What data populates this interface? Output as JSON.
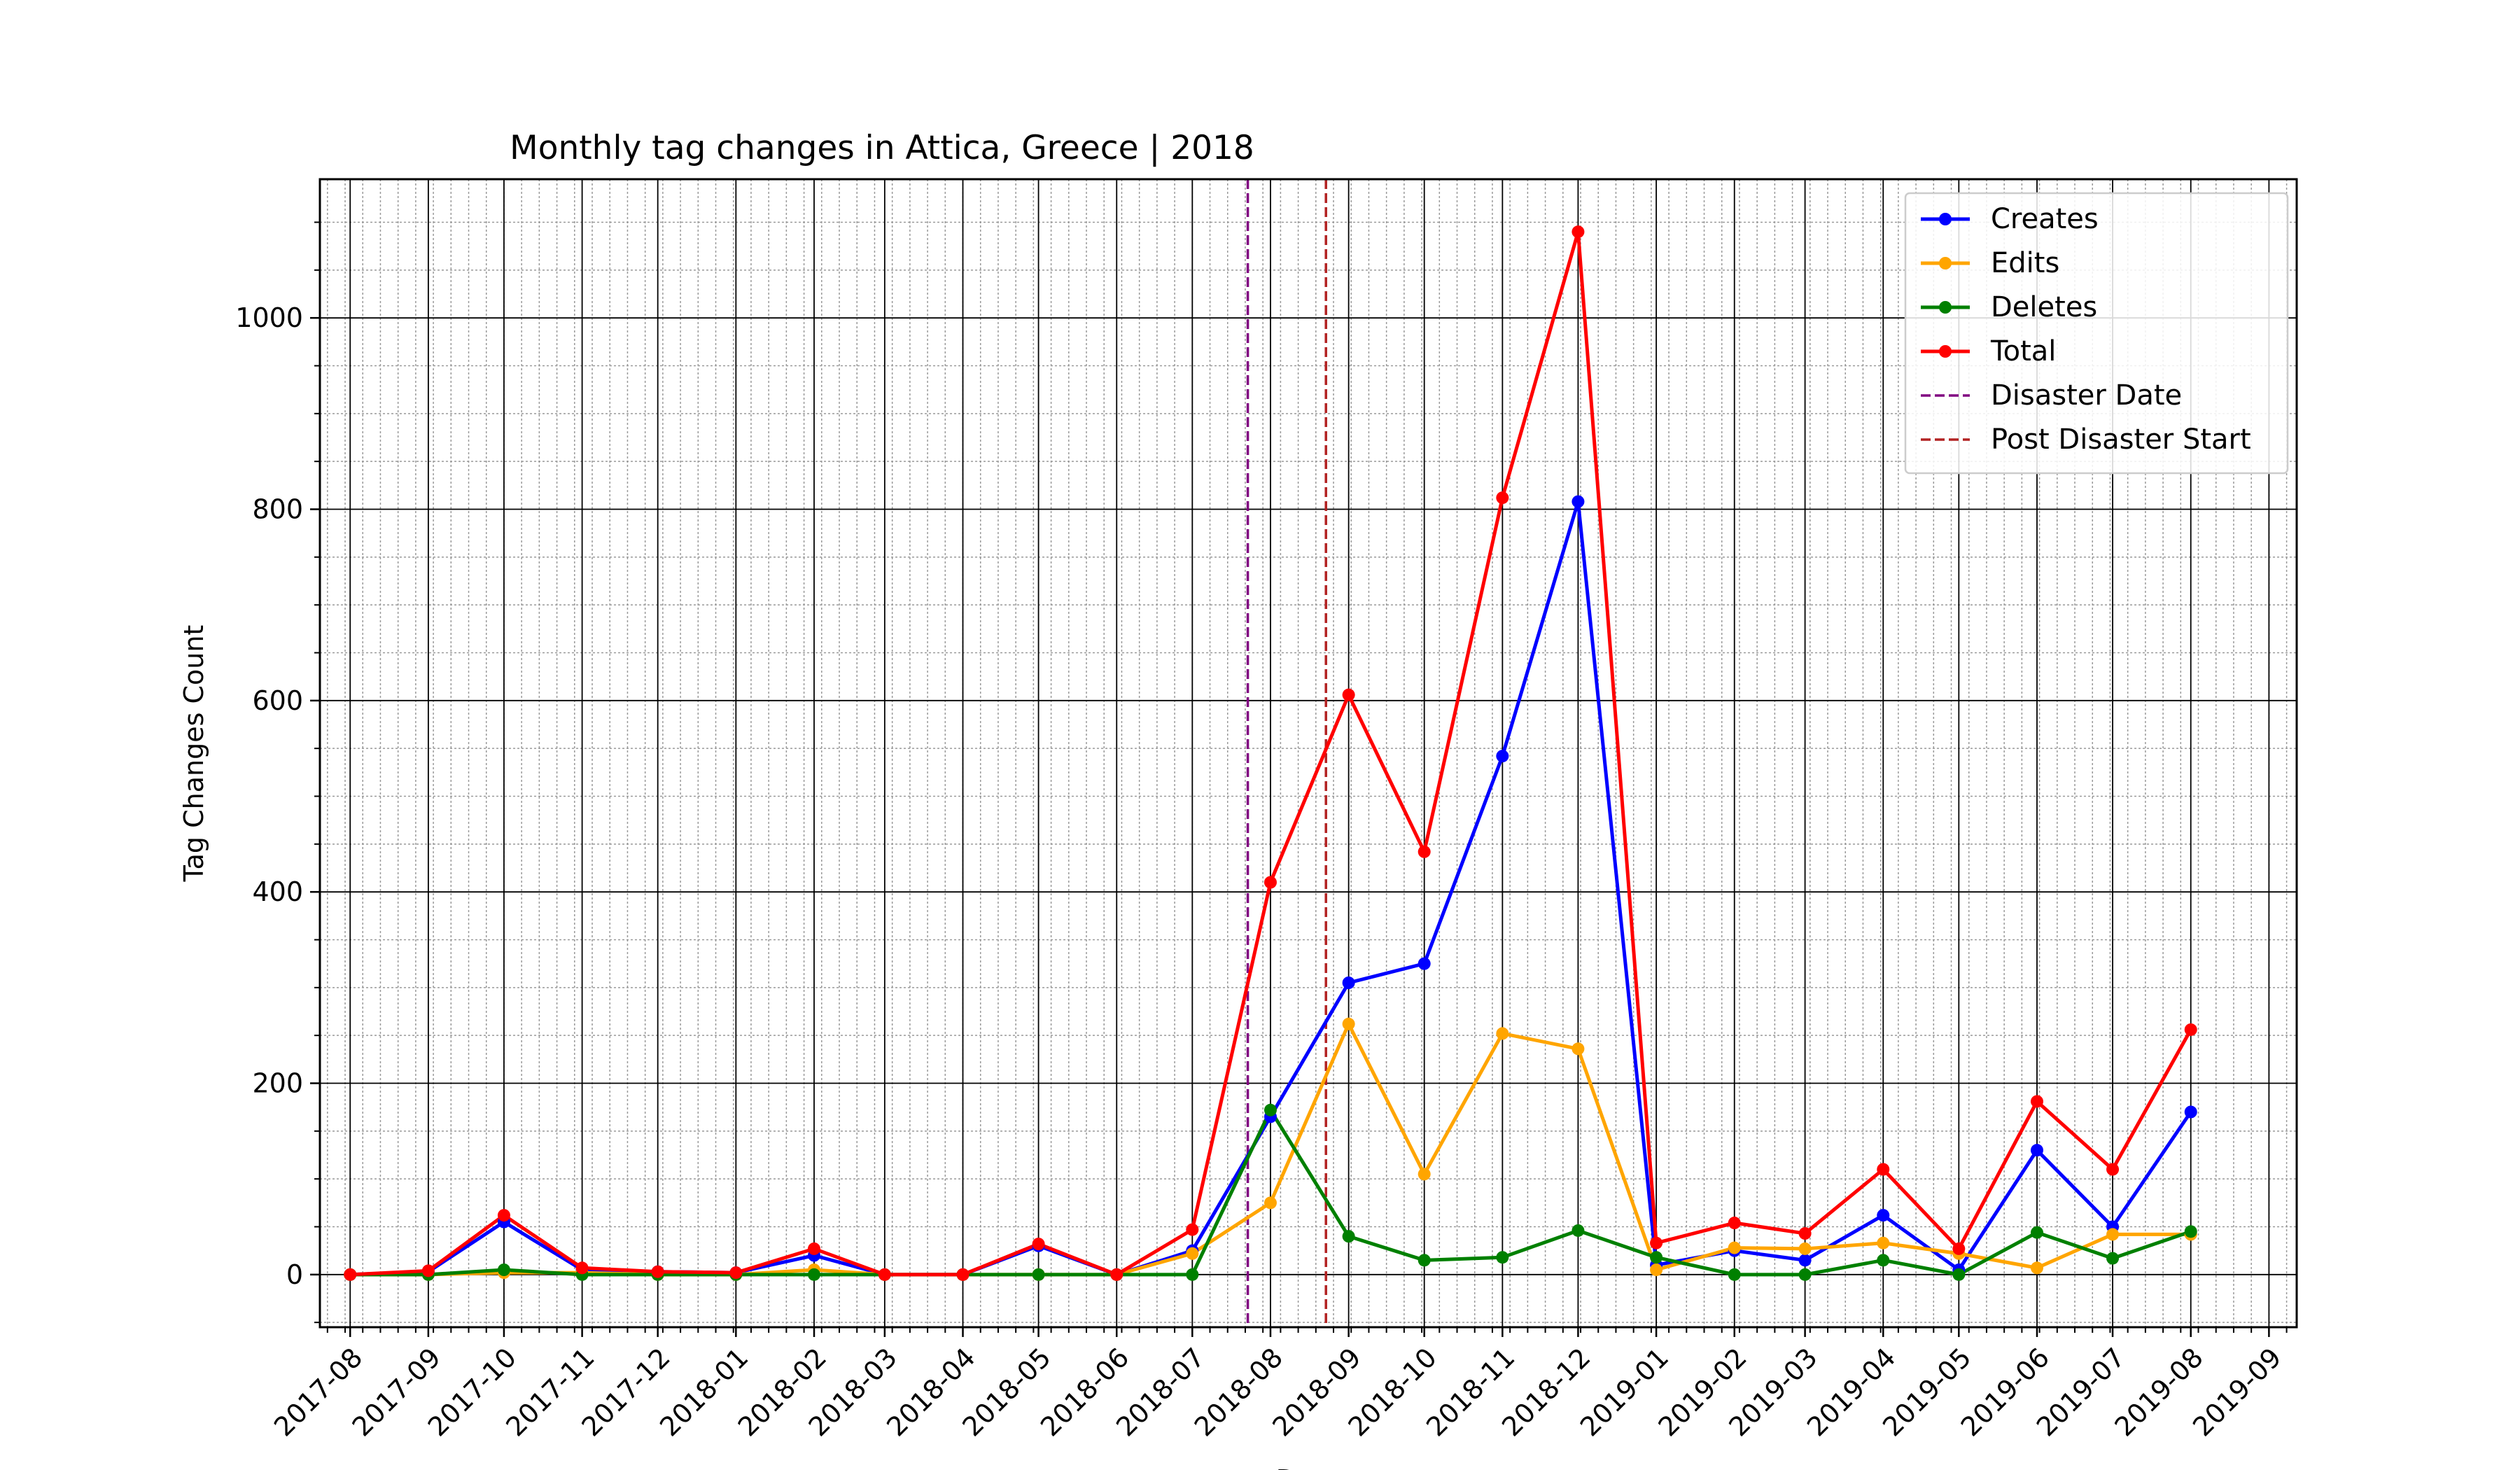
{
  "chart_data": {
    "type": "line",
    "title": "Monthly tag changes in Attica, Greece | 2018",
    "xlabel": "Date",
    "ylabel": "Tag Changes Count",
    "x": [
      "2017-08-01",
      "2017-09-01",
      "2017-10-01",
      "2017-11-01",
      "2017-12-01",
      "2018-01-01",
      "2018-02-01",
      "2018-03-01",
      "2018-04-01",
      "2018-05-01",
      "2018-06-01",
      "2018-07-01",
      "2018-08-01",
      "2018-09-01",
      "2018-10-01",
      "2018-11-01",
      "2018-12-01",
      "2019-01-01",
      "2019-02-01",
      "2019-03-01",
      "2019-04-01",
      "2019-05-01",
      "2019-06-01",
      "2019-07-01",
      "2019-08-01"
    ],
    "xlim": [
      "2017-07-20",
      "2019-09-12"
    ],
    "ylim": [
      -55,
      1145
    ],
    "x_tick_labels": [
      "2017-08",
      "2017-09",
      "2017-10",
      "2017-11",
      "2017-12",
      "2018-01",
      "2018-02",
      "2018-03",
      "2018-04",
      "2018-05",
      "2018-06",
      "2018-07",
      "2018-08",
      "2018-09",
      "2018-10",
      "2018-11",
      "2018-12",
      "2019-01",
      "2019-02",
      "2019-03",
      "2019-04",
      "2019-05",
      "2019-06",
      "2019-07",
      "2019-08",
      "2019-09"
    ],
    "y_ticks": [
      0,
      200,
      400,
      600,
      800,
      1000
    ],
    "grid": true,
    "legend_position": "top-right",
    "series": [
      {
        "name": "Creates",
        "color": "#0000ff",
        "values": [
          0,
          3,
          55,
          5,
          3,
          2,
          20,
          0,
          0,
          30,
          0,
          25,
          165,
          305,
          325,
          542,
          808,
          10,
          25,
          15,
          62,
          5,
          130,
          50,
          170
        ]
      },
      {
        "name": "Edits",
        "color": "#ffa500",
        "values": [
          0,
          0,
          2,
          2,
          0,
          0,
          5,
          0,
          0,
          0,
          0,
          22,
          75,
          262,
          105,
          252,
          236,
          5,
          28,
          27,
          33,
          22,
          7,
          42,
          42
        ]
      },
      {
        "name": "Deletes",
        "color": "#008000",
        "values": [
          0,
          0,
          5,
          0,
          0,
          0,
          0,
          0,
          0,
          0,
          0,
          0,
          172,
          40,
          15,
          18,
          46,
          18,
          0,
          0,
          15,
          0,
          44,
          17,
          45
        ]
      },
      {
        "name": "Total",
        "color": "#ff0000",
        "values": [
          0,
          4,
          62,
          7,
          3,
          2,
          27,
          0,
          0,
          32,
          0,
          47,
          410,
          606,
          442,
          812,
          1090,
          33,
          54,
          43,
          110,
          27,
          181,
          110,
          256
        ]
      }
    ],
    "vlines": [
      {
        "name": "Disaster Date",
        "color": "#800080",
        "x": "2018-07-23"
      },
      {
        "name": "Post Disaster Start",
        "color": "#b22222",
        "x": "2018-08-23"
      }
    ]
  }
}
